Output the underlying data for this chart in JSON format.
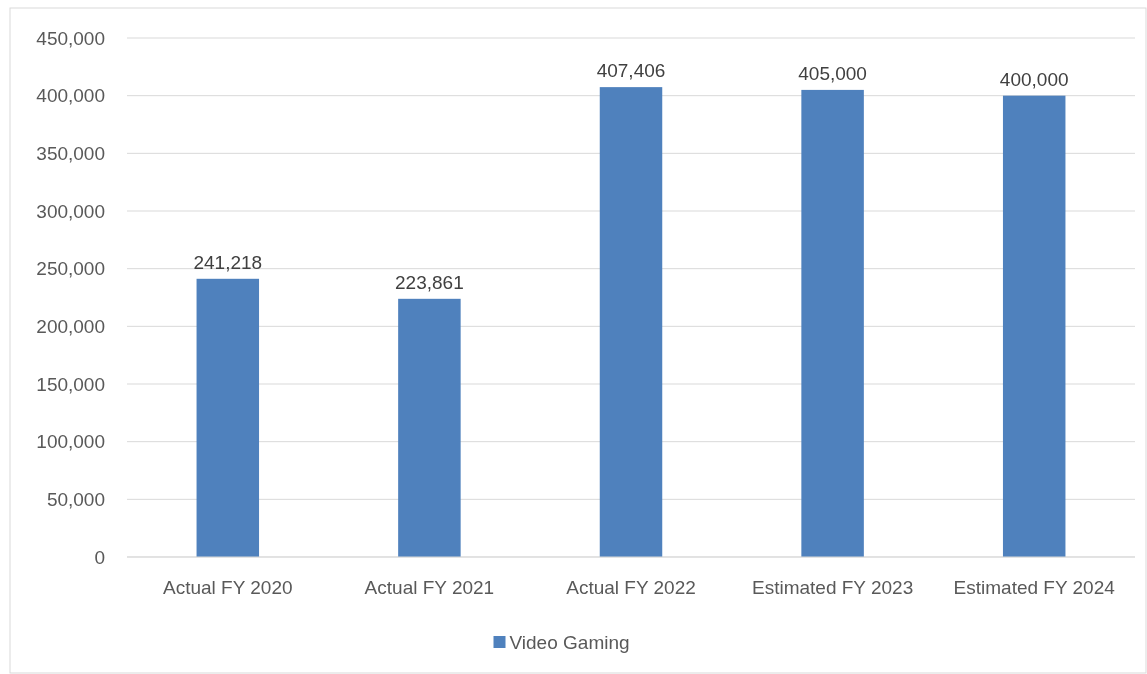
{
  "chart_data": {
    "type": "bar",
    "categories": [
      "Actual FY 2020",
      "Actual FY 2021",
      "Actual FY 2022",
      "Estimated FY 2023",
      "Estimated FY 2024"
    ],
    "series": [
      {
        "name": "Video Gaming",
        "color": "#4f81bd",
        "values": [
          241218,
          223861,
          407406,
          405000,
          400000
        ],
        "value_labels": [
          "241,218",
          "223,861",
          "407,406",
          "405,000",
          "400,000"
        ]
      }
    ],
    "ylim": [
      0,
      450000
    ],
    "yticks": [
      {
        "value": 0,
        "label": "0"
      },
      {
        "value": 50000,
        "label": "50,000"
      },
      {
        "value": 100000,
        "label": "100,000"
      },
      {
        "value": 150000,
        "label": "150,000"
      },
      {
        "value": 200000,
        "label": "200,000"
      },
      {
        "value": 250000,
        "label": "250,000"
      },
      {
        "value": 300000,
        "label": "300,000"
      },
      {
        "value": 350000,
        "label": "350,000"
      },
      {
        "value": 400000,
        "label": "400,000"
      },
      {
        "value": 450000,
        "label": "450,000"
      }
    ],
    "grid": "y",
    "legend": "bottom"
  }
}
